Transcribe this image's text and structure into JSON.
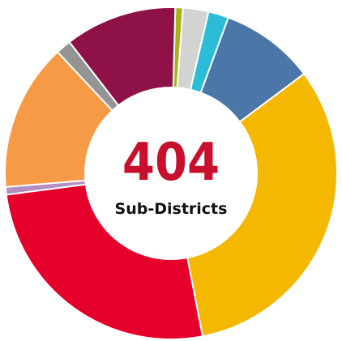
{
  "chart_data": {
    "type": "donut",
    "center_value": 404,
    "center_label": "Sub-Districts",
    "values": [
      3,
      10,
      8,
      37,
      130,
      105,
      3,
      58,
      6,
      44
    ],
    "colors": [
      "#a6b31a",
      "#d3d3d3",
      "#2bbcd8",
      "#4a76a8",
      "#f5b800",
      "#e4002b",
      "#b48ec0",
      "#f79a45",
      "#949494",
      "#8e1247"
    ]
  }
}
